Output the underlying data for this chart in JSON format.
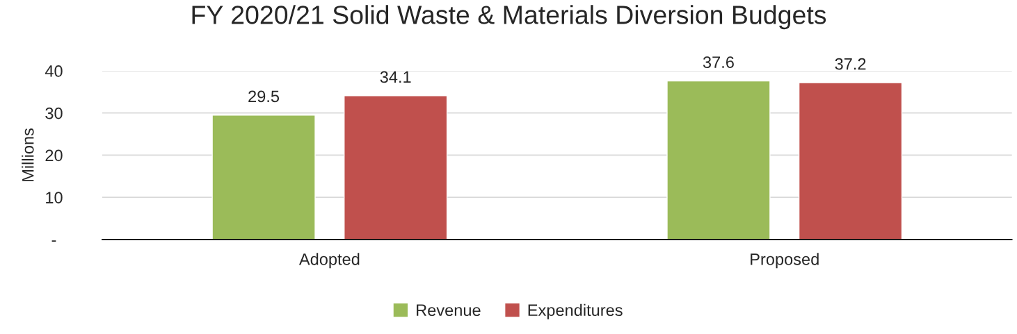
{
  "chart_data": {
    "type": "bar",
    "title": "FY 2020/21 Solid Waste & Materials Diversion Budgets",
    "ylabel": "Millions",
    "categories": [
      "Adopted",
      "Proposed"
    ],
    "series": [
      {
        "name": "Revenue",
        "color": "#9bbb59",
        "values": [
          29.5,
          37.6
        ]
      },
      {
        "name": "Expenditures",
        "color": "#c0504d",
        "values": [
          34.1,
          37.2
        ]
      }
    ],
    "ylim": [
      0,
      40
    ],
    "yticks": [
      {
        "value": 0,
        "label": "-"
      },
      10,
      20,
      30,
      40
    ],
    "grid": "y",
    "legend": "bottom",
    "data_labels": true
  }
}
